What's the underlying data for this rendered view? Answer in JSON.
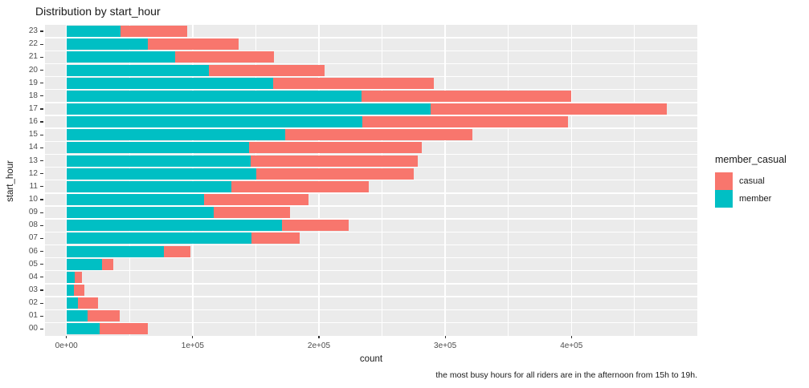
{
  "title": "Distribution by start_hour",
  "axes": {
    "x_label": "count",
    "y_label": "start_hour"
  },
  "legend": {
    "title": "member_casual",
    "entries": [
      {
        "label": "casual",
        "color": "#F8766D"
      },
      {
        "label": "member",
        "color": "#00BFC4"
      }
    ]
  },
  "caption": "the most busy hours for all riders are in the afternoon from 15h to 19h.",
  "colors": {
    "casual": "#F8766D",
    "member": "#00BFC4",
    "panel_background": "#EBEBEB",
    "gridline": "#FFFFFF",
    "tick_text": "#4D4D4D",
    "tick_mark": "#333333",
    "text": "#1A1A1A"
  },
  "chart_data": {
    "type": "bar",
    "orientation": "horizontal",
    "stacked": true,
    "title": "Distribution by start_hour",
    "xlabel": "count",
    "ylabel": "start_hour",
    "legend_position": "right",
    "grid": true,
    "categories": [
      "00",
      "01",
      "02",
      "03",
      "04",
      "05",
      "06",
      "07",
      "08",
      "09",
      "10",
      "11",
      "12",
      "13",
      "14",
      "15",
      "16",
      "17",
      "18",
      "19",
      "20",
      "21",
      "22",
      "23"
    ],
    "series": [
      {
        "name": "member",
        "color": "#00BFC4",
        "values": [
          26500,
          16700,
          9100,
          6100,
          6400,
          27900,
          77000,
          146500,
          170500,
          116400,
          108800,
          130500,
          150300,
          146100,
          144500,
          173500,
          234500,
          288500,
          233800,
          163800,
          113000,
          86300,
          64400,
          42600
        ]
      },
      {
        "name": "casual",
        "color": "#F8766D",
        "values": [
          37700,
          25300,
          15700,
          8100,
          5700,
          9400,
          21000,
          38000,
          53000,
          60600,
          83100,
          109200,
          125100,
          132500,
          137000,
          148000,
          162500,
          187000,
          166300,
          127200,
          91400,
          78000,
          71900,
          53000
        ]
      }
    ],
    "x_ticks": [
      {
        "value": 0,
        "label": "0e+00"
      },
      {
        "value": 100000,
        "label": "1e+05"
      },
      {
        "value": 200000,
        "label": "2e+05"
      },
      {
        "value": 300000,
        "label": "3e+05"
      },
      {
        "value": 400000,
        "label": "4e+05"
      }
    ],
    "x_major_gridlines": [
      0,
      100000,
      200000,
      300000,
      400000,
      500000
    ],
    "x_minor_gridlines": [
      50000,
      150000,
      250000,
      350000,
      450000
    ],
    "xlim": [
      -17000,
      500400
    ]
  }
}
